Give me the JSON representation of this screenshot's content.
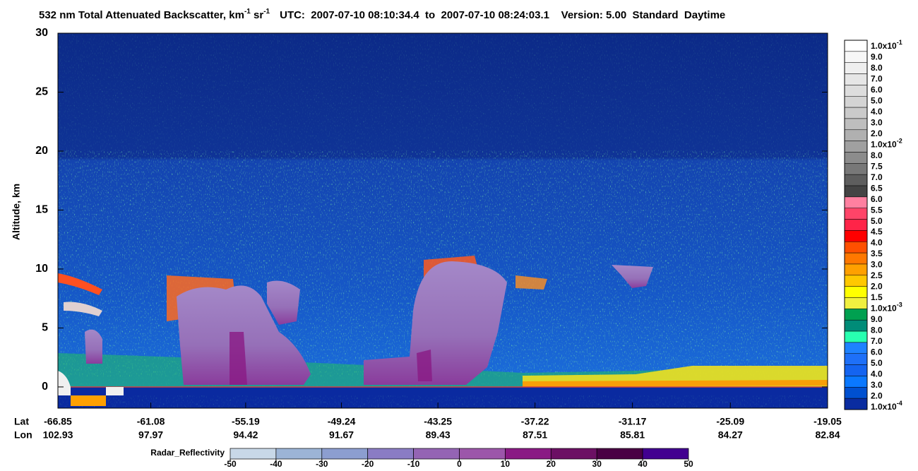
{
  "chart_data": {
    "type": "curtain",
    "title_parts": [
      {
        "text": "532 nm Total Attenuated Backscatter, km"
      },
      {
        "text": "-1",
        "sup": true
      },
      {
        "text": " sr"
      },
      {
        "text": "-1",
        "sup": true
      }
    ],
    "subtitle": "UTC:  2007-07-10 08:10:34.4  to  2007-07-10 08:24:03.1    Version: 5.00  Standard  Daytime",
    "y_label": "Altitude, km",
    "ylim": [
      -1.8,
      30
    ],
    "yticks": [
      0,
      5,
      10,
      15,
      20,
      25,
      30
    ],
    "x_row_labels": [
      "Lat",
      "Lon"
    ],
    "xlim": [
      -66.85,
      -19.05
    ],
    "xticks": [
      -66.85,
      -61.08,
      -55.19,
      -49.24,
      -43.25,
      -37.22,
      -31.17,
      -25.09,
      -19.05
    ],
    "lon_labels": [
      102.93,
      97.97,
      94.42,
      91.67,
      89.43,
      87.51,
      85.81,
      84.27,
      82.84
    ],
    "colorbar": {
      "labels": [
        {
          "text": "1.0x10",
          "sup": "-1"
        },
        {
          "text": "9.0"
        },
        {
          "text": "8.0"
        },
        {
          "text": "7.0"
        },
        {
          "text": "6.0"
        },
        {
          "text": "5.0"
        },
        {
          "text": "4.0"
        },
        {
          "text": "3.0"
        },
        {
          "text": "2.0"
        },
        {
          "text": "1.0x10",
          "sup": "-2"
        },
        {
          "text": "8.0"
        },
        {
          "text": "7.5"
        },
        {
          "text": "7.0"
        },
        {
          "text": "6.5"
        },
        {
          "text": "6.0"
        },
        {
          "text": "5.5"
        },
        {
          "text": "5.0"
        },
        {
          "text": "4.5"
        },
        {
          "text": "4.0"
        },
        {
          "text": "3.5"
        },
        {
          "text": "3.0"
        },
        {
          "text": "2.5"
        },
        {
          "text": "2.0"
        },
        {
          "text": "1.5"
        },
        {
          "text": "1.0x10",
          "sup": "-3"
        },
        {
          "text": "9.0"
        },
        {
          "text": "8.0"
        },
        {
          "text": "7.0"
        },
        {
          "text": "6.0"
        },
        {
          "text": "5.0"
        },
        {
          "text": "4.0"
        },
        {
          "text": "3.0"
        },
        {
          "text": "2.0"
        },
        {
          "text": "1.0x10",
          "sup": "-4"
        }
      ],
      "colors": [
        "#ffffff",
        "#f7f7f7",
        "#efefef",
        "#e6e6e6",
        "#dddddd",
        "#d4d4d4",
        "#cacaca",
        "#bebebe",
        "#b0b0b0",
        "#a0a0a0",
        "#8c8c8c",
        "#787878",
        "#5e5e5e",
        "#444444",
        "#ff80a0",
        "#ff4468",
        "#ff2448",
        "#ff0000",
        "#ff5000",
        "#ff7800",
        "#ffa000",
        "#ffc800",
        "#ffff00",
        "#f0f040",
        "#00a050",
        "#008c78",
        "#28ffb0",
        "#1e82ff",
        "#1e70f8",
        "#1464f0",
        "#0a78ff",
        "#0050d0",
        "#0a2ca0"
      ]
    },
    "radar_colorbar": {
      "label": "Radar_Reflectivity",
      "ticks": [
        -50,
        -40,
        -30,
        -20,
        -10,
        0,
        10,
        20,
        30,
        40,
        50
      ],
      "colors": [
        "#c8d8e8",
        "#9cb4d6",
        "#8c9ed0",
        "#8a7cc4",
        "#9464b4",
        "#9c56aa",
        "#8a1a84",
        "#6c1064",
        "#4a0044",
        "#420090"
      ]
    }
  }
}
